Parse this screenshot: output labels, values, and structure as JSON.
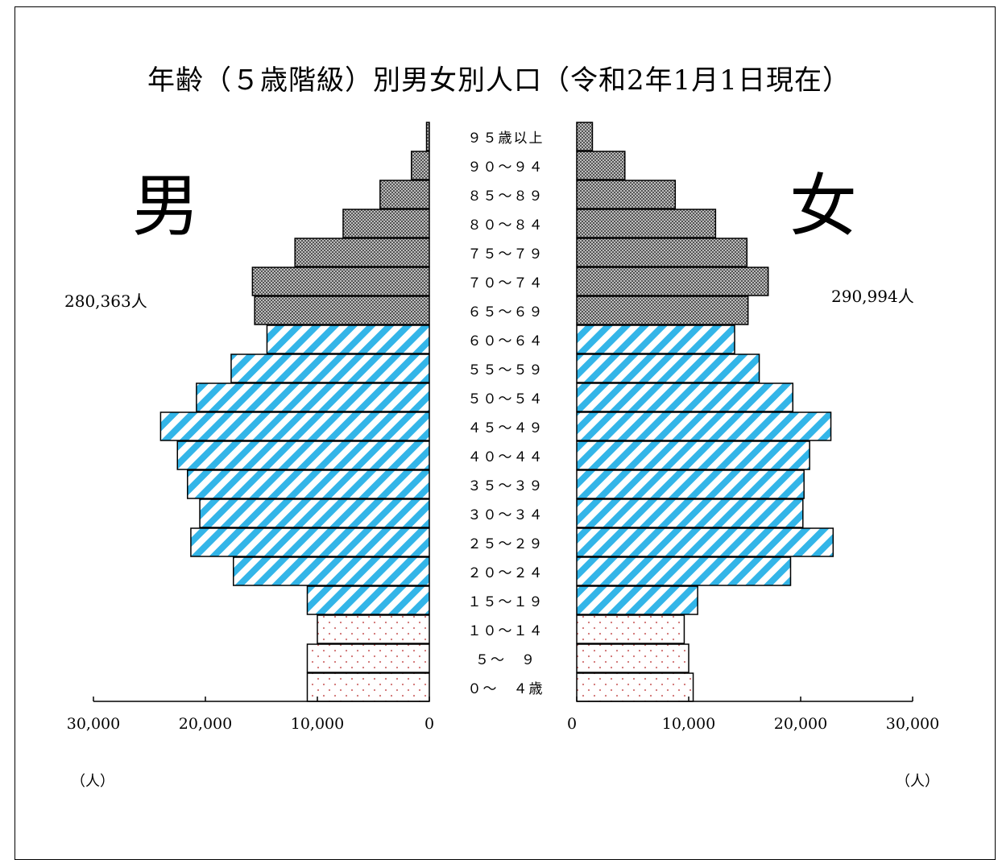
{
  "title": "年齢（５歳階級）別男女別人口（令和2年1月1日現在）",
  "male": {
    "label": "男",
    "total": "280,363人",
    "unit": "（人）"
  },
  "female": {
    "label": "女",
    "total": "290,994人",
    "unit": "（人）"
  },
  "colors": {
    "elderly_fill": "#8c8c8c",
    "working_stripe": "#33b5e8",
    "youth_dot": "#d07070",
    "outline": "#000000"
  },
  "chart_data": {
    "type": "bar",
    "orientation": "horizontal-pyramid",
    "title": "年齢（５歳階級）別男女別人口（令和2年1月1日現在）",
    "categories": [
      "０～　４歳",
      "５～　９",
      "１０～１４",
      "１５～１９",
      "２０～２４",
      "２５～２９",
      "３０～３４",
      "３５～３９",
      "４０～４４",
      "４５～４９",
      "５０～５４",
      "５５～５９",
      "６０～６４",
      "６５～６９",
      "７０～７４",
      "７５～７９",
      "８０～８４",
      "８５～８９",
      "９０～９４",
      "９５歳以上"
    ],
    "series": [
      {
        "name": "男",
        "values": [
          10900,
          10900,
          10000,
          10900,
          17500,
          21300,
          20500,
          21600,
          22500,
          24000,
          20800,
          17700,
          14500,
          15600,
          15800,
          12000,
          7700,
          4400,
          1600,
          250
        ]
      },
      {
        "name": "女",
        "values": [
          10400,
          10000,
          9600,
          10800,
          19100,
          22900,
          20200,
          20300,
          20800,
          22700,
          19300,
          16300,
          14100,
          15300,
          17100,
          15200,
          12400,
          8800,
          4300,
          1400
        ]
      }
    ],
    "age_groups": {
      "youth": [
        0,
        1,
        2
      ],
      "working": [
        3,
        4,
        5,
        6,
        7,
        8,
        9,
        10,
        11,
        12
      ],
      "elderly": [
        13,
        14,
        15,
        16,
        17,
        18,
        19
      ]
    },
    "xlim": [
      0,
      30000
    ],
    "xticks": [
      0,
      10000,
      20000,
      30000
    ],
    "xtick_labels_left": [
      "0",
      "10,000",
      "20,000",
      "30,000"
    ],
    "xtick_labels_right": [
      "0",
      "10,000",
      "20,000",
      "30,000"
    ],
    "xlabel": "（人）",
    "grid": false,
    "legend": "none"
  }
}
